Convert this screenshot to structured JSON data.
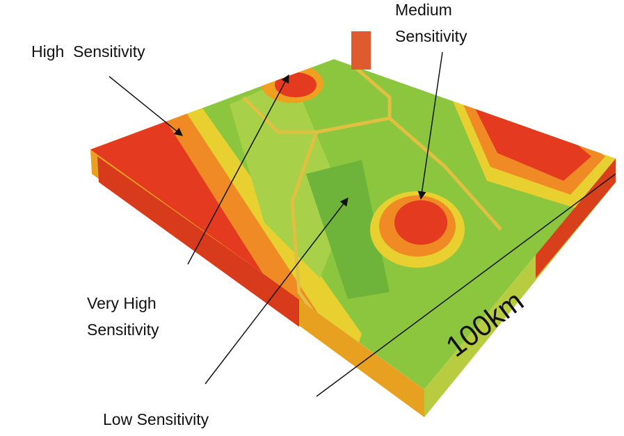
{
  "labels": {
    "high": "High  Sensitivity",
    "medium": [
      "Medium",
      "Sensitivity"
    ],
    "very_high": [
      "Very High",
      "Sensitivity"
    ],
    "low": "Low Sensitivity",
    "scale": "100km"
  }
}
